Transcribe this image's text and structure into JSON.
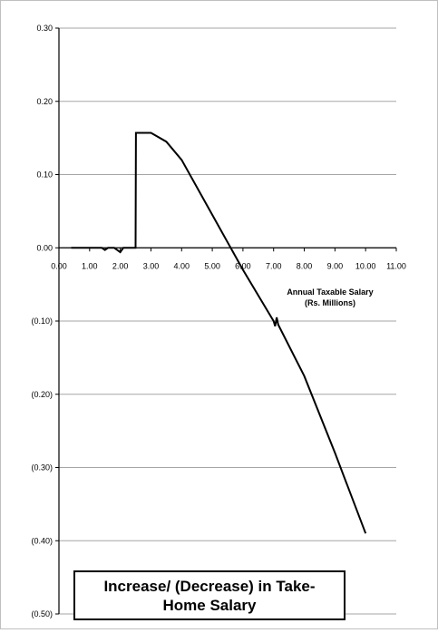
{
  "chart_data": {
    "type": "line",
    "title": "Increase/ (Decrease) in Take-Home Salary",
    "xlabel": "Annual Taxable Salary (Rs. Millions)",
    "xlabel_lines": [
      "Annual Taxable Salary",
      "(Rs. Millions)"
    ],
    "ylabel": "",
    "xlim": [
      0,
      11
    ],
    "ylim": [
      -0.5,
      0.3
    ],
    "x_ticks": [
      0,
      1,
      2,
      3,
      4,
      5,
      6,
      7,
      8,
      9,
      10,
      11
    ],
    "x_tick_labels": [
      "0.00",
      "1.00",
      "2.00",
      "3.00",
      "4.00",
      "5.00",
      "6.00",
      "7.00",
      "8.00",
      "9.00",
      "10.00",
      "11.00"
    ],
    "y_ticks": [
      0.3,
      0.2,
      0.1,
      0.0,
      -0.1,
      -0.2,
      -0.3,
      -0.4,
      -0.5
    ],
    "y_tick_labels": [
      "0.30",
      "0.20",
      "0.10",
      "0.00",
      "(0.10)",
      "(0.20)",
      "(0.30)",
      "(0.40)",
      "(0.50)"
    ],
    "grid": true,
    "legend": "none",
    "line_color": "#000000",
    "series": [
      {
        "x": [
          0.4,
          1.4,
          1.5,
          1.6,
          1.8,
          1.9,
          2.0,
          2.1,
          2.5,
          2.51,
          3.0,
          3.5,
          4.0,
          5.0,
          6.0,
          7.0,
          7.05,
          7.1,
          7.15,
          8.0,
          9.0,
          10.0
        ],
        "y": [
          0.0,
          0.0,
          -0.003,
          0.0,
          0.0,
          -0.003,
          -0.006,
          0.0,
          0.0,
          0.157,
          0.157,
          0.145,
          0.12,
          0.045,
          -0.03,
          -0.1,
          -0.107,
          -0.095,
          -0.105,
          -0.175,
          -0.28,
          -0.39
        ]
      }
    ]
  }
}
